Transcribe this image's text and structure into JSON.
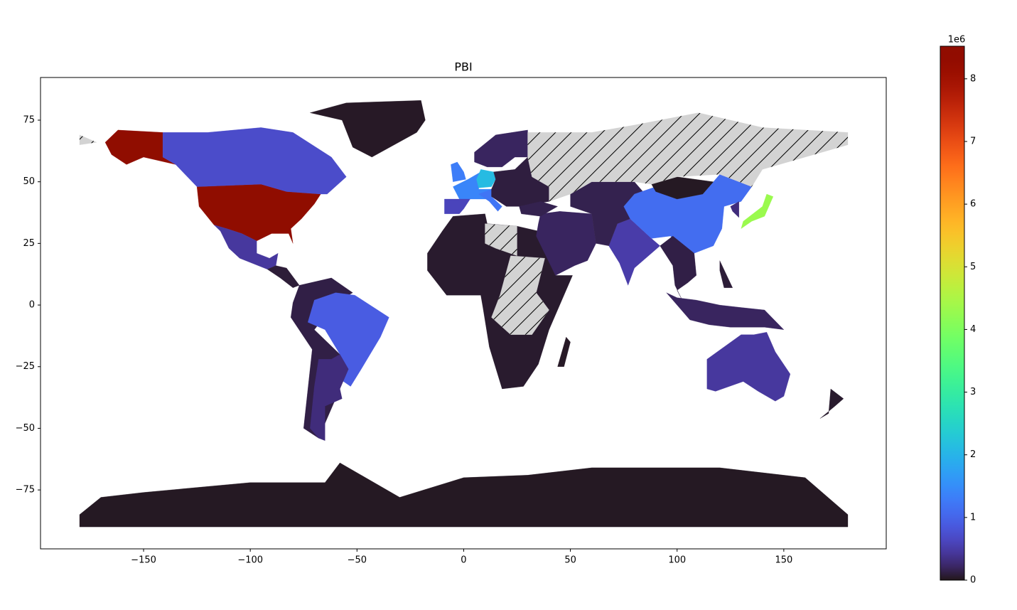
{
  "chart_data": {
    "type": "choropleth",
    "title": "PBI",
    "colormap": "turbo",
    "missing_color": "#d3d3d3",
    "missing_hatch": true,
    "values": [
      8520000,
      8520000,
      700000,
      30000,
      450000,
      80000,
      120000,
      900000,
      300000,
      50000,
      null,
      null,
      30000,
      200000,
      500000,
      150000,
      1100000,
      20000,
      4300000,
      300000,
      120000,
      200000,
      80000,
      450000,
      50000,
      20000,
      1400000,
      1300000,
      1200000,
      2100000,
      600000,
      200000,
      100000,
      150000,
      null,
      null
    ],
    "xlim": [
      -198.3,
      198
    ],
    "ylim": [
      -98.9,
      92.3
    ],
    "xticks": [
      {
        "value": -150,
        "label": "−150"
      },
      {
        "value": -100,
        "label": "−100"
      },
      {
        "value": -50,
        "label": "−50"
      },
      0,
      50,
      100,
      150
    ],
    "yticks": [
      {
        "value": -75,
        "label": "−75"
      },
      {
        "value": -50,
        "label": "−50"
      },
      {
        "value": -25,
        "label": "−25"
      },
      0,
      25,
      50,
      75
    ],
    "clim": [
      0,
      8520000
    ],
    "cticks": [
      0,
      {
        "value": 1000000,
        "label": "1"
      },
      {
        "value": 2000000,
        "label": "2"
      },
      {
        "value": 3000000,
        "label": "3"
      },
      {
        "value": 4000000,
        "label": "4"
      },
      {
        "value": 5000000,
        "label": "5"
      },
      {
        "value": 6000000,
        "label": "6"
      },
      {
        "value": 7000000,
        "label": "7"
      },
      {
        "value": 8000000,
        "label": "8"
      }
    ],
    "offset_label": "1e6"
  }
}
